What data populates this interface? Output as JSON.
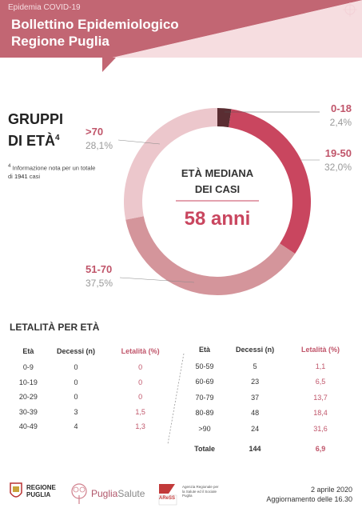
{
  "header": {
    "subtitle": "Epidemia COVID-19",
    "title_line1": "Bollettino Epidemiologico",
    "title_line2": "Regione Puglia"
  },
  "section_title": {
    "line1": "GRUPPI",
    "line2": "DI ETÀ",
    "sup": "4"
  },
  "note": {
    "text": "Informazione nota per un totale di",
    "number": "1941",
    "suffix": "casi",
    "marker": "4"
  },
  "center": {
    "line1": "ETÀ MEDIANA",
    "line2": "DEI CASI",
    "value": "58 anni"
  },
  "chart_data": {
    "type": "pie",
    "donut": true,
    "categories": [
      "0-18",
      "19-50",
      "51-70",
      ">70"
    ],
    "values": [
      2.4,
      32.0,
      37.5,
      28.1
    ],
    "value_labels": [
      "2,4%",
      "32,0%",
      "37,5%",
      "28,1%"
    ],
    "colors": [
      "#5a2d32",
      "#c9465f",
      "#d4959b",
      "#ecc7cc"
    ]
  },
  "letalita": {
    "title": "LETALITÀ PER ETÀ",
    "headers": [
      "Età",
      "Decessi (n)",
      "Letalità (%)"
    ],
    "left_rows": [
      [
        "0-9",
        "0",
        "0"
      ],
      [
        "10-19",
        "0",
        "0"
      ],
      [
        "20-29",
        "0",
        "0"
      ],
      [
        "30-39",
        "3",
        "1,5"
      ],
      [
        "40-49",
        "4",
        "1,3"
      ]
    ],
    "right_rows": [
      [
        "50-59",
        "5",
        "1,1"
      ],
      [
        "60-69",
        "23",
        "6,5"
      ],
      [
        "70-79",
        "37",
        "13,7"
      ],
      [
        "80-89",
        "48",
        "18,4"
      ],
      [
        ">90",
        "24",
        "31,6"
      ]
    ],
    "total": [
      "Totale",
      "144",
      "6,9"
    ]
  },
  "footer": {
    "date": "2 aprile 2020",
    "update": "Aggiornamento delle 16.30",
    "logo1_line1": "REGIONE",
    "logo1_line2": "PUGLIA",
    "logo2a": "Puglia",
    "logo2b": "Salute",
    "logo3": "AReSS",
    "logo3_text": "Agenzia Regionale per la Salute ed il Sociale Puglia"
  }
}
